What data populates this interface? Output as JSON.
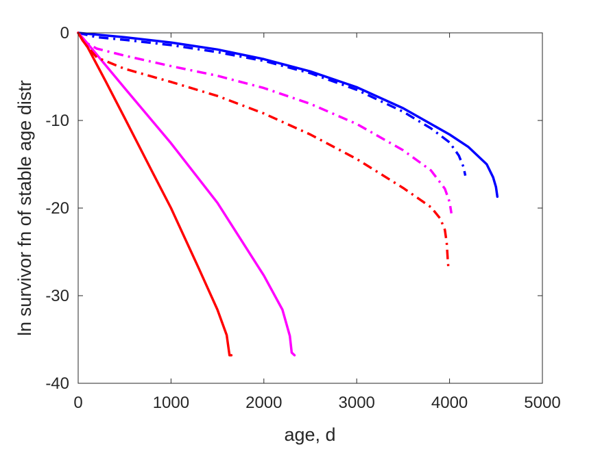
{
  "chart_data": {
    "type": "line",
    "title": "",
    "xlabel": "age, d",
    "ylabel": "ln survivor fn of stable age distr",
    "xlim": [
      0,
      5000
    ],
    "ylim": [
      -40,
      0
    ],
    "xticks": [
      0,
      1000,
      2000,
      3000,
      4000,
      5000
    ],
    "yticks": [
      0,
      -10,
      -20,
      -30,
      -40
    ],
    "xtick_labels": [
      "0",
      "1000",
      "2000",
      "3000",
      "4000",
      "5000"
    ],
    "ytick_labels": [
      "0",
      "-10",
      "-20",
      "-30",
      "-40"
    ],
    "grid": false,
    "legend": "none",
    "series": [
      {
        "color": "#0000ff",
        "style": "solid",
        "points": [
          [
            0,
            0
          ],
          [
            500,
            -0.5
          ],
          [
            1000,
            -1.1
          ],
          [
            1500,
            -1.9
          ],
          [
            2000,
            -3.0
          ],
          [
            2500,
            -4.4
          ],
          [
            3000,
            -6.2
          ],
          [
            3500,
            -8.6
          ],
          [
            4000,
            -11.6
          ],
          [
            4200,
            -13.0
          ],
          [
            4400,
            -15.0
          ],
          [
            4470,
            -16.5
          ],
          [
            4500,
            -17.6
          ],
          [
            4515,
            -18.7
          ]
        ]
      },
      {
        "color": "#0000ff",
        "style": "dashdot",
        "points": [
          [
            0,
            0
          ],
          [
            200,
            -0.5
          ],
          [
            500,
            -0.8
          ],
          [
            1000,
            -1.4
          ],
          [
            1500,
            -2.2
          ],
          [
            2000,
            -3.2
          ],
          [
            2500,
            -4.6
          ],
          [
            3000,
            -6.5
          ],
          [
            3500,
            -9.0
          ],
          [
            3800,
            -10.9
          ],
          [
            4000,
            -12.5
          ],
          [
            4100,
            -14.0
          ],
          [
            4150,
            -15.3
          ],
          [
            4170,
            -16.3
          ]
        ]
      },
      {
        "color": "#ff00ff",
        "style": "solid",
        "points": [
          [
            0,
            0
          ],
          [
            50,
            -0.6
          ],
          [
            100,
            -1.2
          ],
          [
            500,
            -6.3
          ],
          [
            1000,
            -12.6
          ],
          [
            1500,
            -19.4
          ],
          [
            2000,
            -27.7
          ],
          [
            2200,
            -31.6
          ],
          [
            2280,
            -34.6
          ],
          [
            2300,
            -36.5
          ],
          [
            2330,
            -36.8
          ]
        ]
      },
      {
        "color": "#ff00ff",
        "style": "dashdot",
        "points": [
          [
            0,
            0
          ],
          [
            50,
            -0.6
          ],
          [
            100,
            -1.2
          ],
          [
            200,
            -1.8
          ],
          [
            500,
            -2.6
          ],
          [
            1000,
            -3.8
          ],
          [
            1500,
            -4.9
          ],
          [
            2000,
            -6.3
          ],
          [
            2500,
            -8.1
          ],
          [
            3000,
            -10.4
          ],
          [
            3500,
            -13.4
          ],
          [
            3800,
            -15.7
          ],
          [
            3950,
            -17.8
          ],
          [
            4000,
            -19.3
          ],
          [
            4020,
            -20.6
          ]
        ]
      },
      {
        "color": "#ff0000",
        "style": "solid",
        "points": [
          [
            0,
            0
          ],
          [
            50,
            -0.9
          ],
          [
            100,
            -1.6
          ],
          [
            300,
            -5.6
          ],
          [
            500,
            -9.7
          ],
          [
            800,
            -15.9
          ],
          [
            1000,
            -20.0
          ],
          [
            1300,
            -26.9
          ],
          [
            1500,
            -31.6
          ],
          [
            1600,
            -34.5
          ],
          [
            1630,
            -36.8
          ],
          [
            1650,
            -36.8
          ]
        ]
      },
      {
        "color": "#ff0000",
        "style": "dashdot",
        "points": [
          [
            0,
            0
          ],
          [
            50,
            -0.9
          ],
          [
            100,
            -1.6
          ],
          [
            200,
            -2.8
          ],
          [
            500,
            -4.1
          ],
          [
            1000,
            -5.6
          ],
          [
            1500,
            -7.2
          ],
          [
            2000,
            -9.2
          ],
          [
            2500,
            -11.6
          ],
          [
            3000,
            -14.4
          ],
          [
            3500,
            -17.7
          ],
          [
            3800,
            -19.9
          ],
          [
            3900,
            -21.2
          ],
          [
            3950,
            -22.5
          ],
          [
            3970,
            -24.0
          ],
          [
            3980,
            -25.8
          ],
          [
            3990,
            -27.1
          ]
        ]
      }
    ]
  }
}
